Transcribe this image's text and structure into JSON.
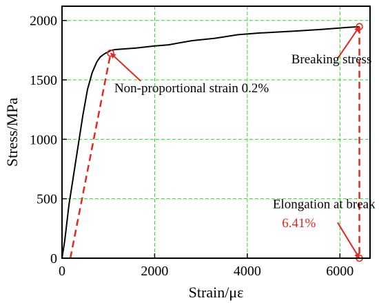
{
  "chart_data": {
    "type": "line",
    "xlabel": "Strain/με",
    "ylabel": "Stress/MPa",
    "xlim": [
      0,
      6650
    ],
    "ylim": [
      0,
      2120
    ],
    "x_ticks": [
      0,
      2000,
      4000,
      6000
    ],
    "x_tick_labels": [
      "0",
      "2000",
      "4000",
      "6000"
    ],
    "y_ticks": [
      0,
      500,
      1000,
      1500,
      2000
    ],
    "y_tick_labels": [
      "0",
      "500",
      "1000",
      "1500",
      "2000"
    ],
    "grid": true,
    "colors": {
      "curve": "#000000",
      "annotation": "#e8251f",
      "grid": "#19e619"
    },
    "series": [
      {
        "x": [
          0,
          60,
          150,
          250,
          350,
          450,
          550,
          650,
          750,
          820,
          880,
          940,
          1000,
          1050,
          1150,
          1300,
          1600,
          2000,
          2300,
          2800,
          3300,
          3800,
          4300,
          5000,
          5600,
          6100,
          6420
        ],
        "y": [
          0,
          150,
          450,
          700,
          950,
          1200,
          1420,
          1560,
          1650,
          1690,
          1710,
          1725,
          1735,
          1748,
          1755,
          1760,
          1768,
          1785,
          1795,
          1830,
          1850,
          1880,
          1895,
          1910,
          1925,
          1940,
          1948
        ]
      }
    ],
    "offset_line": {
      "x": [
        180,
        1050
      ],
      "y": [
        0,
        1725
      ]
    },
    "drop_line": {
      "x": [
        6420,
        6420
      ],
      "y": [
        1948,
        0
      ]
    },
    "markers": [
      {
        "x": 1050,
        "y": 1725
      },
      {
        "x": 6420,
        "y": 1948
      },
      {
        "x": 6420,
        "y": 0
      }
    ],
    "annotations": [
      {
        "text": "Non-proportional strain 0.2%",
        "x": 1130,
        "y": 1395,
        "color": "#000000",
        "arrow_to": {
          "x": 1050,
          "y": 1725
        },
        "arrow_from": {
          "x": 1700,
          "y": 1490
        }
      },
      {
        "text": "Breaking stress",
        "x": 4950,
        "y": 1640,
        "color": "#000000",
        "arrow_to": {
          "x": 6420,
          "y": 1948
        },
        "arrow_from": {
          "x": 5950,
          "y": 1680
        }
      },
      {
        "text": "Elongation at break",
        "x": 4550,
        "y": 420,
        "color": "#000000",
        "arrow_to": {
          "x": 6420,
          "y": 0
        },
        "arrow_from": {
          "x": 5950,
          "y": 300
        }
      },
      {
        "text": "6.41%",
        "x": 4750,
        "y": 260,
        "color": "#e8251f"
      }
    ]
  }
}
